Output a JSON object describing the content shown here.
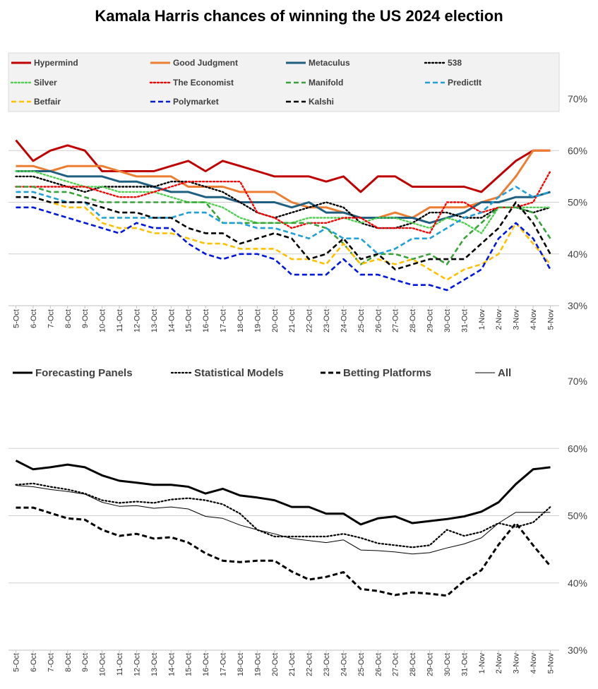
{
  "page": {
    "title": "Kamala Harris chances of winning the US 2024 election"
  },
  "chart_data": [
    {
      "type": "line",
      "title": "Kamala Harris chances of winning the US 2024 election",
      "ylim": [
        30,
        70
      ],
      "yticks": [
        30,
        40,
        50,
        60,
        70
      ],
      "ytick_labels": [
        "30%",
        "40%",
        "50%",
        "60%",
        "70%"
      ],
      "grid": true,
      "legend_position": "top",
      "categories": [
        "5-Oct",
        "6-Oct",
        "7-Oct",
        "8-Oct",
        "9-Oct",
        "10-Oct",
        "11-Oct",
        "12-Oct",
        "13-Oct",
        "14-Oct",
        "15-Oct",
        "16-Oct",
        "17-Oct",
        "18-Oct",
        "19-Oct",
        "20-Oct",
        "21-Oct",
        "22-Oct",
        "23-Oct",
        "24-Oct",
        "25-Oct",
        "26-Oct",
        "27-Oct",
        "28-Oct",
        "29-Oct",
        "30-Oct",
        "31-Oct",
        "1-Nov",
        "2-Nov",
        "3-Nov",
        "4-Nov",
        "5-Nov"
      ],
      "series": [
        {
          "name": "Hypermind",
          "color": "#C00000",
          "dash": "solid",
          "width": 3,
          "values": [
            62,
            58,
            60,
            61,
            60,
            56,
            56,
            56,
            56,
            57,
            58,
            56,
            58,
            57,
            56,
            55,
            55,
            55,
            54,
            55,
            52,
            55,
            55,
            53,
            53,
            53,
            53,
            52,
            55,
            58,
            60,
            60
          ]
        },
        {
          "name": "Good Judgment",
          "color": "#ED7D31",
          "dash": "solid",
          "width": 3,
          "values": [
            57,
            57,
            56,
            57,
            57,
            57,
            56,
            55,
            55,
            55,
            53,
            53,
            53,
            52,
            52,
            52,
            50,
            49,
            49,
            48,
            47,
            47,
            48,
            47,
            49,
            49,
            49,
            50,
            51,
            55,
            60,
            60
          ]
        },
        {
          "name": "Metaculus",
          "color": "#1F5F80",
          "dash": "solid",
          "width": 3,
          "values": [
            56,
            56,
            56,
            55,
            55,
            55,
            54,
            54,
            53,
            52,
            52,
            51,
            51,
            50,
            50,
            50,
            49,
            50,
            48,
            48,
            47,
            47,
            47,
            47,
            46,
            47,
            48,
            50,
            50,
            51,
            51,
            52
          ]
        },
        {
          "name": "538",
          "color": "#000000",
          "dash": "dot",
          "width": 2.4,
          "values": [
            55,
            55,
            54,
            53,
            52,
            53,
            53,
            53,
            53,
            54,
            54,
            53,
            52,
            50,
            48,
            47,
            48,
            49,
            50,
            49,
            46,
            45,
            45,
            46,
            48,
            48,
            47,
            47,
            49,
            49,
            48,
            49
          ]
        },
        {
          "name": "Silver",
          "color": "#4FD04F",
          "dash": "dot",
          "width": 2.4,
          "values": [
            56,
            56,
            55,
            54,
            53,
            53,
            52,
            52,
            52,
            51,
            50,
            50,
            49,
            47,
            46,
            46,
            46,
            47,
            47,
            47,
            46,
            47,
            47,
            46,
            45,
            47,
            46,
            44,
            49,
            49,
            49,
            49
          ]
        },
        {
          "name": "The Economist",
          "color": "#FF0000",
          "dash": "dot",
          "width": 2.4,
          "values": [
            53,
            53,
            53,
            53,
            53,
            52,
            51,
            51,
            52,
            53,
            54,
            54,
            54,
            54,
            48,
            47,
            45,
            46,
            46,
            47,
            47,
            45,
            45,
            45,
            44,
            50,
            50,
            48,
            49,
            49,
            50,
            56
          ]
        },
        {
          "name": "Manifold",
          "color": "#3AA23A",
          "dash": "dash",
          "width": 2.6,
          "values": [
            53,
            53,
            52,
            52,
            51,
            50,
            50,
            50,
            50,
            50,
            50,
            50,
            46,
            46,
            46,
            46,
            46,
            46,
            45,
            42,
            38,
            40,
            40,
            39,
            40,
            38,
            43,
            46,
            49,
            49,
            48,
            43
          ]
        },
        {
          "name": "PredictIt",
          "color": "#1FA0D8",
          "dash": "dash",
          "width": 2.6,
          "values": [
            52,
            52,
            51,
            50,
            50,
            47,
            47,
            47,
            47,
            47,
            48,
            48,
            46,
            46,
            45,
            45,
            44,
            43,
            45,
            43,
            43,
            40,
            41,
            43,
            43,
            45,
            47,
            48,
            51,
            53,
            51,
            52
          ]
        },
        {
          "name": "Betfair",
          "color": "#FFC000",
          "dash": "dash",
          "width": 2.6,
          "values": [
            51,
            51,
            50,
            49,
            49,
            46,
            45,
            45,
            44,
            44,
            43,
            42,
            42,
            41,
            41,
            41,
            39,
            39,
            38,
            42,
            38,
            39,
            38,
            39,
            37,
            35,
            37,
            38,
            40,
            46,
            42,
            38
          ]
        },
        {
          "name": "Polymarket",
          "color": "#0018E0",
          "dash": "dash",
          "width": 2.6,
          "values": [
            49,
            49,
            48,
            47,
            46,
            45,
            44,
            46,
            45,
            45,
            42,
            40,
            39,
            40,
            40,
            39,
            36,
            36,
            36,
            39,
            36,
            36,
            35,
            34,
            34,
            33,
            35,
            37,
            43,
            46,
            43,
            37
          ]
        },
        {
          "name": "Kalshi",
          "color": "#000000",
          "dash": "dash",
          "width": 2.6,
          "values": [
            51,
            51,
            50,
            50,
            50,
            49,
            48,
            48,
            47,
            47,
            45,
            44,
            44,
            42,
            43,
            44,
            43,
            39,
            40,
            43,
            39,
            40,
            37,
            38,
            39,
            39,
            39,
            42,
            45,
            50,
            46,
            40
          ]
        }
      ]
    },
    {
      "type": "line",
      "ylim": [
        30,
        70
      ],
      "yticks": [
        30,
        40,
        50,
        60,
        70
      ],
      "ytick_labels": [
        "30%",
        "40%",
        "50%",
        "60%",
        "70%"
      ],
      "grid": true,
      "legend_position": "top",
      "categories": [
        "5-Oct",
        "6-Oct",
        "7-Oct",
        "8-Oct",
        "9-Oct",
        "10-Oct",
        "11-Oct",
        "12-Oct",
        "13-Oct",
        "14-Oct",
        "15-Oct",
        "16-Oct",
        "17-Oct",
        "18-Oct",
        "19-Oct",
        "20-Oct",
        "21-Oct",
        "22-Oct",
        "23-Oct",
        "24-Oct",
        "25-Oct",
        "26-Oct",
        "27-Oct",
        "28-Oct",
        "29-Oct",
        "30-Oct",
        "31-Oct",
        "1-Nov",
        "2-Nov",
        "3-Nov",
        "4-Nov",
        "5-Nov"
      ],
      "series": [
        {
          "name": "Forecasting Panels",
          "color": "#000000",
          "dash": "solid",
          "width": 3,
          "values": [
            58.2,
            56.9,
            57.2,
            57.6,
            57.2,
            56.0,
            55.2,
            54.9,
            54.6,
            54.6,
            54.3,
            53.3,
            54.0,
            53.0,
            52.7,
            52.3,
            51.3,
            51.3,
            50.3,
            50.3,
            48.7,
            49.6,
            49.9,
            48.9,
            49.2,
            49.5,
            49.9,
            50.6,
            52.0,
            54.7,
            56.9,
            57.2
          ]
        },
        {
          "name": "Statistical Models",
          "color": "#000000",
          "dash": "dot",
          "width": 2.2,
          "values": [
            54.6,
            54.8,
            54.3,
            53.9,
            53.3,
            52.3,
            51.9,
            52.1,
            51.9,
            52.4,
            52.6,
            52.3,
            51.7,
            50.3,
            47.9,
            46.9,
            46.9,
            46.9,
            46.9,
            47.3,
            46.7,
            45.9,
            45.6,
            45.3,
            45.6,
            47.9,
            47.0,
            47.6,
            48.9,
            48.3,
            49.0,
            51.3
          ]
        },
        {
          "name": "Betting Platforms",
          "color": "#000000",
          "dash": "dash",
          "width": 3,
          "values": [
            51.2,
            51.2,
            50.4,
            49.6,
            49.4,
            47.9,
            47.0,
            47.3,
            46.6,
            46.8,
            46.0,
            44.4,
            43.3,
            43.1,
            43.3,
            43.3,
            41.7,
            40.5,
            40.9,
            41.6,
            39.1,
            38.8,
            38.2,
            38.6,
            38.4,
            38.1,
            40.3,
            41.9,
            45.7,
            48.9,
            45.6,
            42.5
          ]
        },
        {
          "name": "All",
          "color": "#000000",
          "dash": "solid",
          "width": 1,
          "values": [
            54.5,
            54.3,
            53.9,
            53.6,
            53.2,
            52.0,
            51.4,
            51.5,
            51.1,
            51.3,
            51.0,
            49.9,
            49.6,
            48.6,
            47.9,
            47.3,
            46.6,
            46.3,
            46.0,
            46.4,
            44.9,
            44.8,
            44.6,
            44.3,
            44.5,
            45.2,
            45.8,
            46.7,
            48.9,
            50.5,
            50.5,
            50.5
          ]
        }
      ]
    }
  ]
}
